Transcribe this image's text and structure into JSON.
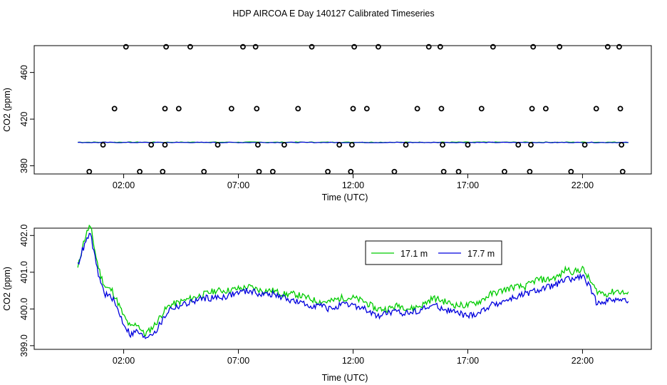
{
  "title": "HDP AIRCOA E  Day 140127  Calibrated Timeseries",
  "chart_data": [
    {
      "type": "scatter",
      "xlabel": "Time (UTC)",
      "ylabel": "CO2 (ppm)",
      "x_ticks": [
        "02:00",
        "07:00",
        "12:00",
        "17:00",
        "22:00"
      ],
      "x_tick_hours": [
        2,
        7,
        12,
        17,
        22
      ],
      "y_ticks": [
        380,
        420,
        460
      ],
      "xlim": [
        -1.9,
        25.0
      ],
      "ylim": [
        373,
        483
      ],
      "grid": false,
      "point_colors": "#000000",
      "line_colors": [
        "#00cc00",
        "#0000dd"
      ],
      "points": [
        [
          0.5,
          375
        ],
        [
          1.1,
          398
        ],
        [
          1.6,
          429
        ],
        [
          2.1,
          482
        ],
        [
          2.7,
          375
        ],
        [
          3.2,
          398
        ],
        [
          3.7,
          375
        ],
        [
          3.8,
          398
        ],
        [
          3.8,
          429
        ],
        [
          3.85,
          482
        ],
        [
          4.4,
          429
        ],
        [
          4.9,
          482
        ],
        [
          5.5,
          375
        ],
        [
          6.1,
          398
        ],
        [
          6.7,
          429
        ],
        [
          7.2,
          482
        ],
        [
          7.75,
          482
        ],
        [
          7.8,
          429
        ],
        [
          7.85,
          398
        ],
        [
          7.9,
          375
        ],
        [
          8.5,
          375
        ],
        [
          9.0,
          398
        ],
        [
          9.6,
          429
        ],
        [
          10.2,
          482
        ],
        [
          10.9,
          375
        ],
        [
          11.4,
          398
        ],
        [
          11.9,
          375
        ],
        [
          11.95,
          398
        ],
        [
          12.0,
          429
        ],
        [
          12.05,
          482
        ],
        [
          12.6,
          429
        ],
        [
          13.1,
          482
        ],
        [
          13.8,
          375
        ],
        [
          14.3,
          398
        ],
        [
          14.8,
          429
        ],
        [
          15.3,
          482
        ],
        [
          15.8,
          482
        ],
        [
          15.85,
          429
        ],
        [
          15.9,
          398
        ],
        [
          15.95,
          375
        ],
        [
          16.6,
          375
        ],
        [
          17.0,
          398
        ],
        [
          17.6,
          429
        ],
        [
          18.1,
          482
        ],
        [
          18.6,
          375
        ],
        [
          19.2,
          398
        ],
        [
          19.7,
          375
        ],
        [
          19.75,
          398
        ],
        [
          19.8,
          429
        ],
        [
          19.85,
          482
        ],
        [
          20.4,
          429
        ],
        [
          21.0,
          482
        ],
        [
          21.5,
          375
        ],
        [
          22.1,
          398
        ],
        [
          22.6,
          429
        ],
        [
          23.1,
          482
        ],
        [
          23.6,
          482
        ],
        [
          23.65,
          429
        ],
        [
          23.7,
          398
        ],
        [
          23.75,
          375
        ]
      ],
      "series": [
        {
          "name": "17.1 m",
          "x": [
            0,
            24
          ],
          "y": [
            400.2,
            400.2
          ]
        },
        {
          "name": "17.7 m",
          "x": [
            0,
            24
          ],
          "y": [
            400.0,
            400.0
          ]
        }
      ]
    },
    {
      "type": "line",
      "xlabel": "Time (UTC)",
      "ylabel": "CO2 (ppm)",
      "x_ticks": [
        "02:00",
        "07:00",
        "12:00",
        "17:00",
        "22:00"
      ],
      "x_tick_hours": [
        2,
        7,
        12,
        17,
        22
      ],
      "y_ticks": [
        "399.0",
        "400.0",
        "401.0",
        "402.0"
      ],
      "y_tick_values": [
        399.0,
        400.0,
        401.0,
        402.0
      ],
      "xlim": [
        -1.9,
        25.0
      ],
      "ylim": [
        398.9,
        402.2
      ],
      "grid": false,
      "legend_position": "top-right",
      "x": [
        0,
        0.2,
        0.35,
        0.5,
        0.6,
        0.8,
        1.0,
        1.2,
        1.5,
        1.8,
        2.0,
        2.3,
        2.6,
        2.9,
        3.1,
        3.4,
        3.7,
        4.0,
        4.5,
        5.0,
        5.5,
        6.0,
        6.5,
        7.0,
        7.5,
        8.0,
        8.5,
        9.0,
        9.5,
        10.0,
        10.5,
        11.0,
        11.5,
        12.0,
        12.5,
        13.0,
        13.5,
        14.0,
        14.5,
        15.0,
        15.5,
        16.0,
        16.5,
        17.0,
        17.5,
        18.0,
        18.5,
        19.0,
        19.5,
        20.0,
        20.5,
        21.0,
        21.3,
        21.6,
        22.0,
        22.3,
        22.6,
        23.0,
        23.5,
        24.0
      ],
      "series": [
        {
          "name": "17.1 m",
          "y": [
            401.1,
            401.7,
            402.0,
            402.25,
            402.1,
            401.4,
            400.9,
            400.6,
            400.5,
            400.1,
            399.8,
            399.5,
            399.6,
            399.3,
            399.4,
            399.6,
            399.9,
            400.1,
            400.2,
            400.3,
            400.4,
            400.5,
            400.5,
            400.55,
            400.6,
            400.5,
            400.5,
            400.4,
            400.4,
            400.3,
            400.2,
            400.2,
            400.3,
            400.3,
            400.2,
            400.0,
            400.0,
            400.1,
            400.0,
            400.1,
            400.3,
            400.2,
            400.1,
            400.1,
            400.2,
            400.4,
            400.5,
            400.6,
            400.6,
            400.8,
            400.8,
            400.9,
            401.1,
            401.0,
            401.1,
            400.8,
            400.5,
            400.4,
            400.5,
            400.4
          ]
        },
        {
          "name": "17.7 m",
          "y": [
            401.2,
            401.6,
            401.8,
            402.05,
            401.9,
            401.2,
            400.7,
            400.4,
            400.3,
            399.9,
            399.6,
            399.3,
            399.4,
            399.2,
            399.3,
            399.4,
            399.7,
            400.0,
            400.1,
            400.2,
            400.3,
            400.3,
            400.35,
            400.45,
            400.5,
            400.4,
            400.4,
            400.3,
            400.2,
            400.1,
            400.1,
            400.0,
            400.1,
            400.1,
            400.0,
            399.8,
            399.9,
            399.9,
            399.9,
            400.0,
            400.1,
            400.0,
            399.9,
            399.8,
            399.9,
            400.1,
            400.2,
            400.3,
            400.4,
            400.5,
            400.6,
            400.7,
            400.8,
            400.8,
            400.9,
            400.6,
            400.2,
            400.2,
            400.3,
            400.2
          ]
        }
      ]
    }
  ]
}
